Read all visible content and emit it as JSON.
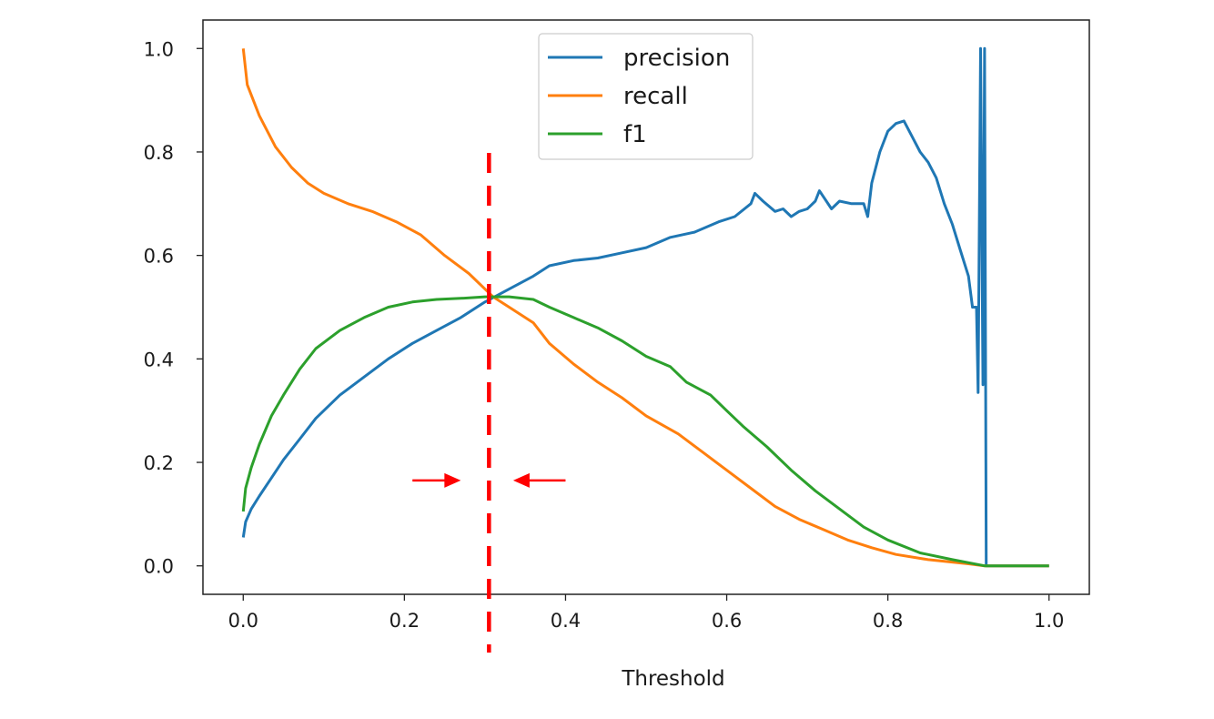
{
  "chart_data": {
    "type": "line",
    "title": "",
    "xlabel": "Threshold",
    "ylabel": "",
    "xlim": [
      -0.05,
      1.05
    ],
    "ylim": [
      -0.055,
      1.055
    ],
    "xticks": [
      0.0,
      0.2,
      0.4,
      0.6,
      0.8,
      1.0
    ],
    "xtick_labels": [
      "0.0",
      "0.2",
      "0.4",
      "0.6",
      "0.8",
      "1.0"
    ],
    "yticks": [
      0.0,
      0.2,
      0.4,
      0.6,
      0.8,
      1.0
    ],
    "ytick_labels": [
      "0.0",
      "0.2",
      "0.4",
      "0.6",
      "0.8",
      "1.0"
    ],
    "grid": false,
    "legend_position": "top-center",
    "series": [
      {
        "name": "precision",
        "color": "#1f77b4",
        "points": [
          [
            0.0,
            0.055
          ],
          [
            0.003,
            0.085
          ],
          [
            0.01,
            0.11
          ],
          [
            0.02,
            0.135
          ],
          [
            0.035,
            0.17
          ],
          [
            0.05,
            0.205
          ],
          [
            0.07,
            0.245
          ],
          [
            0.09,
            0.285
          ],
          [
            0.12,
            0.33
          ],
          [
            0.15,
            0.365
          ],
          [
            0.18,
            0.4
          ],
          [
            0.21,
            0.43
          ],
          [
            0.24,
            0.455
          ],
          [
            0.27,
            0.48
          ],
          [
            0.3,
            0.51
          ],
          [
            0.33,
            0.535
          ],
          [
            0.36,
            0.56
          ],
          [
            0.38,
            0.58
          ],
          [
            0.41,
            0.59
          ],
          [
            0.44,
            0.595
          ],
          [
            0.47,
            0.605
          ],
          [
            0.5,
            0.615
          ],
          [
            0.53,
            0.635
          ],
          [
            0.56,
            0.645
          ],
          [
            0.59,
            0.665
          ],
          [
            0.61,
            0.675
          ],
          [
            0.63,
            0.7
          ],
          [
            0.635,
            0.72
          ],
          [
            0.645,
            0.705
          ],
          [
            0.66,
            0.685
          ],
          [
            0.67,
            0.69
          ],
          [
            0.68,
            0.675
          ],
          [
            0.69,
            0.685
          ],
          [
            0.7,
            0.69
          ],
          [
            0.71,
            0.705
          ],
          [
            0.715,
            0.725
          ],
          [
            0.73,
            0.69
          ],
          [
            0.74,
            0.705
          ],
          [
            0.755,
            0.7
          ],
          [
            0.77,
            0.7
          ],
          [
            0.775,
            0.675
          ],
          [
            0.78,
            0.74
          ],
          [
            0.79,
            0.8
          ],
          [
            0.8,
            0.84
          ],
          [
            0.81,
            0.855
          ],
          [
            0.82,
            0.86
          ],
          [
            0.83,
            0.83
          ],
          [
            0.84,
            0.8
          ],
          [
            0.85,
            0.78
          ],
          [
            0.86,
            0.75
          ],
          [
            0.87,
            0.7
          ],
          [
            0.88,
            0.66
          ],
          [
            0.89,
            0.61
          ],
          [
            0.9,
            0.56
          ],
          [
            0.905,
            0.5
          ],
          [
            0.91,
            0.5
          ],
          [
            0.912,
            0.335
          ],
          [
            0.915,
            1.0
          ],
          [
            0.918,
            0.35
          ],
          [
            0.92,
            1.0
          ],
          [
            0.922,
            0.0
          ],
          [
            0.95,
            0.0
          ],
          [
            1.0,
            0.0
          ]
        ]
      },
      {
        "name": "recall",
        "color": "#ff7f0e",
        "points": [
          [
            0.0,
            1.0
          ],
          [
            0.005,
            0.93
          ],
          [
            0.02,
            0.87
          ],
          [
            0.04,
            0.81
          ],
          [
            0.06,
            0.77
          ],
          [
            0.08,
            0.74
          ],
          [
            0.1,
            0.72
          ],
          [
            0.13,
            0.7
          ],
          [
            0.16,
            0.685
          ],
          [
            0.19,
            0.665
          ],
          [
            0.22,
            0.64
          ],
          [
            0.25,
            0.6
          ],
          [
            0.28,
            0.565
          ],
          [
            0.3,
            0.535
          ],
          [
            0.31,
            0.52
          ],
          [
            0.33,
            0.5
          ],
          [
            0.36,
            0.47
          ],
          [
            0.38,
            0.43
          ],
          [
            0.41,
            0.39
          ],
          [
            0.44,
            0.355
          ],
          [
            0.47,
            0.325
          ],
          [
            0.5,
            0.29
          ],
          [
            0.54,
            0.255
          ],
          [
            0.57,
            0.22
          ],
          [
            0.6,
            0.185
          ],
          [
            0.63,
            0.15
          ],
          [
            0.66,
            0.115
          ],
          [
            0.69,
            0.09
          ],
          [
            0.72,
            0.07
          ],
          [
            0.75,
            0.05
          ],
          [
            0.78,
            0.035
          ],
          [
            0.81,
            0.022
          ],
          [
            0.85,
            0.012
          ],
          [
            0.9,
            0.004
          ],
          [
            0.92,
            0.0
          ],
          [
            1.0,
            0.0
          ]
        ]
      },
      {
        "name": "f1",
        "color": "#2ca02c",
        "points": [
          [
            0.0,
            0.105
          ],
          [
            0.003,
            0.15
          ],
          [
            0.01,
            0.19
          ],
          [
            0.02,
            0.235
          ],
          [
            0.035,
            0.29
          ],
          [
            0.05,
            0.33
          ],
          [
            0.07,
            0.38
          ],
          [
            0.09,
            0.42
          ],
          [
            0.12,
            0.455
          ],
          [
            0.15,
            0.48
          ],
          [
            0.18,
            0.5
          ],
          [
            0.21,
            0.51
          ],
          [
            0.24,
            0.515
          ],
          [
            0.27,
            0.517
          ],
          [
            0.3,
            0.52
          ],
          [
            0.33,
            0.52
          ],
          [
            0.36,
            0.515
          ],
          [
            0.38,
            0.5
          ],
          [
            0.41,
            0.48
          ],
          [
            0.44,
            0.46
          ],
          [
            0.47,
            0.435
          ],
          [
            0.5,
            0.405
          ],
          [
            0.53,
            0.385
          ],
          [
            0.55,
            0.355
          ],
          [
            0.58,
            0.33
          ],
          [
            0.6,
            0.3
          ],
          [
            0.62,
            0.27
          ],
          [
            0.65,
            0.23
          ],
          [
            0.68,
            0.185
          ],
          [
            0.71,
            0.145
          ],
          [
            0.74,
            0.11
          ],
          [
            0.77,
            0.075
          ],
          [
            0.8,
            0.05
          ],
          [
            0.84,
            0.025
          ],
          [
            0.88,
            0.012
          ],
          [
            0.92,
            0.0
          ],
          [
            1.0,
            0.0
          ]
        ]
      }
    ],
    "annotations": {
      "threshold_line": {
        "x": 0.305,
        "color": "#ff0000",
        "style": "dashed"
      },
      "arrows": [
        {
          "from_x": 0.21,
          "to_x": 0.27,
          "y": 0.165,
          "color": "#ff0000"
        },
        {
          "from_x": 0.4,
          "to_x": 0.335,
          "y": 0.165,
          "color": "#ff0000"
        }
      ]
    }
  }
}
